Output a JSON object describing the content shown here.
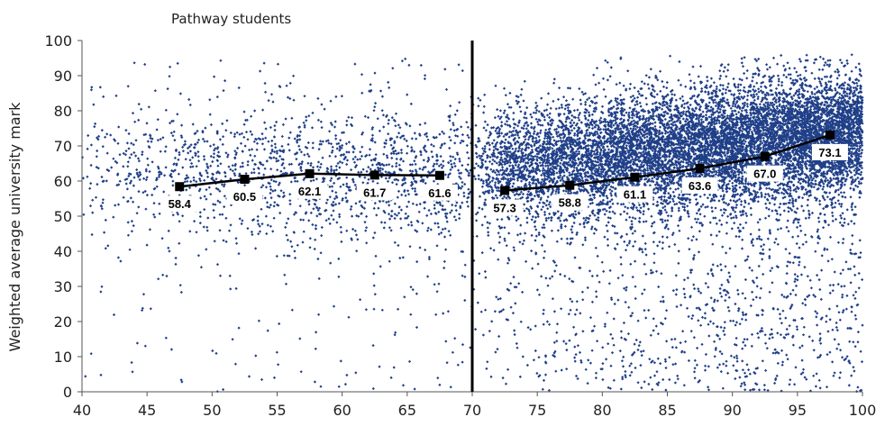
{
  "chart_data": {
    "type": "scatter",
    "title": "",
    "annotation": "Pathway students",
    "xlabel": "",
    "ylabel": "Weighted average university mark",
    "xlim": [
      40,
      100
    ],
    "ylim": [
      0,
      100
    ],
    "x_ticks": [
      "40",
      "45",
      "50",
      "55",
      "60",
      "65",
      "70",
      "75",
      "80",
      "85",
      "90",
      "95",
      "100"
    ],
    "y_ticks": [
      "0",
      "10",
      "20",
      "30",
      "40",
      "50",
      "60",
      "70",
      "80",
      "90",
      "100"
    ],
    "threshold_x": 70,
    "grid": false,
    "legend": "none",
    "scatter_color": "#1f3f88",
    "line_color": "#000000",
    "series": [
      {
        "type": "line",
        "points": [
          {
            "x": 47.5,
            "y": 58.4,
            "label": "58.4"
          },
          {
            "x": 52.5,
            "y": 60.5,
            "label": "60.5"
          },
          {
            "x": 57.5,
            "y": 62.1,
            "label": "62.1"
          },
          {
            "x": 62.5,
            "y": 61.7,
            "label": "61.7"
          },
          {
            "x": 67.5,
            "y": 61.6,
            "label": "61.6"
          }
        ]
      },
      {
        "type": "line",
        "points": [
          {
            "x": 72.5,
            "y": 57.3,
            "label": "57.3"
          },
          {
            "x": 77.5,
            "y": 58.8,
            "label": "58.8"
          },
          {
            "x": 82.5,
            "y": 61.1,
            "label": "61.1"
          },
          {
            "x": 87.5,
            "y": 63.6,
            "label": "63.6"
          },
          {
            "x": 92.5,
            "y": 67.0,
            "label": "67.0"
          },
          {
            "x": 97.5,
            "y": 73.1,
            "label": "73.1"
          }
        ]
      }
    ]
  }
}
